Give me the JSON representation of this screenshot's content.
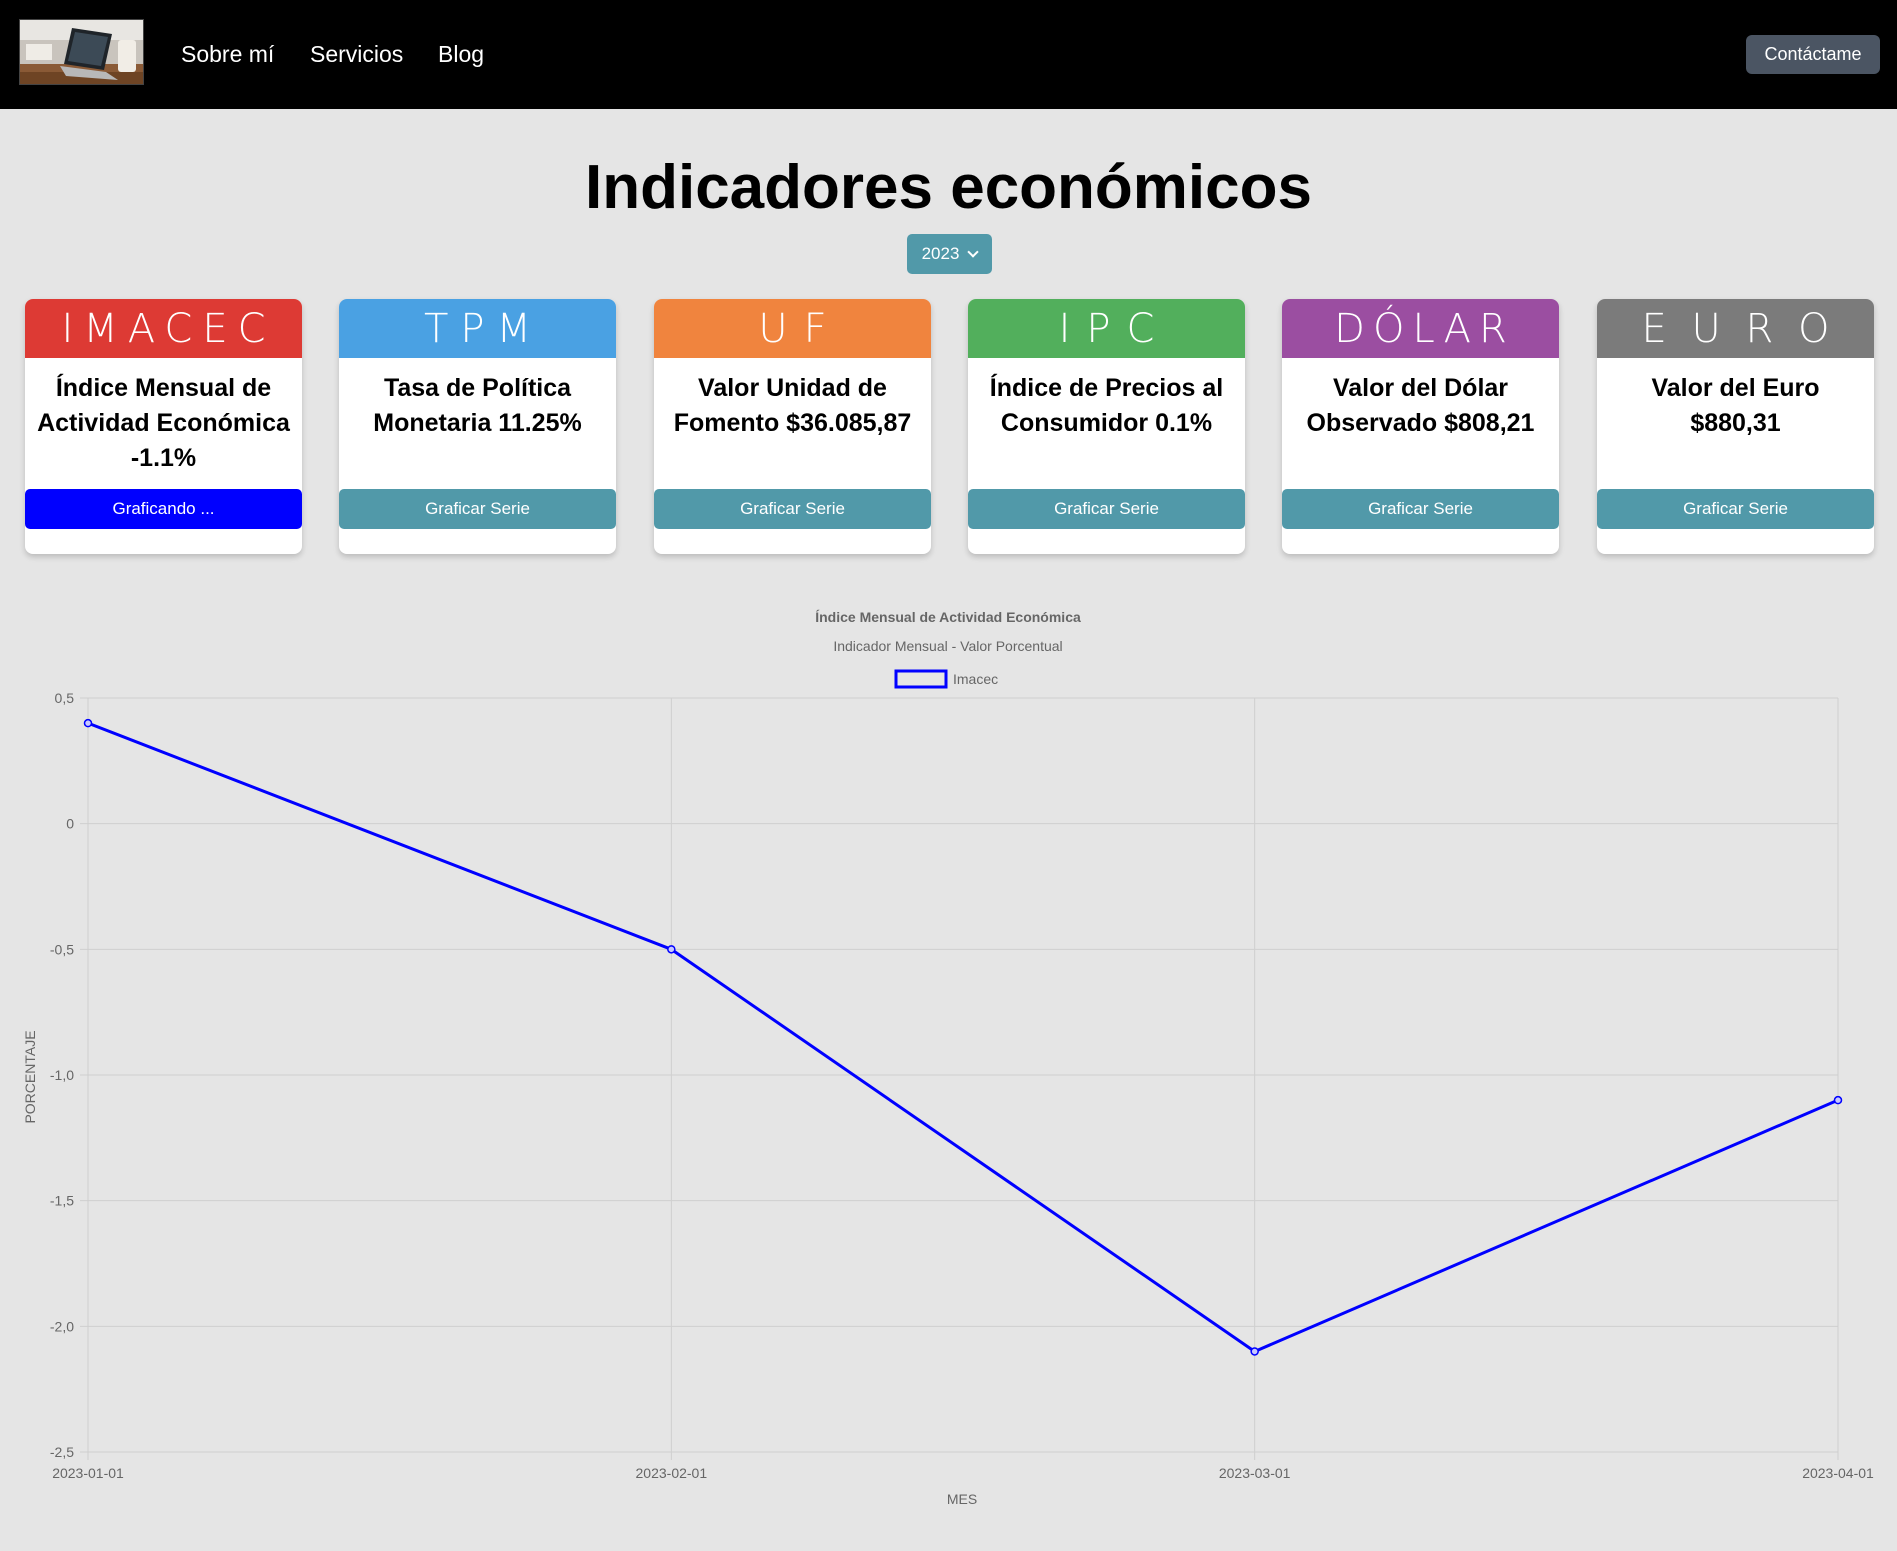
{
  "nav": {
    "links": [
      "Sobre mí",
      "Servicios",
      "Blog"
    ],
    "contact_label": "Contáctame"
  },
  "page": {
    "title": "Indicadores económicos",
    "year": "2023"
  },
  "cards": [
    {
      "head": "IMACEC",
      "desc": "Índice Mensual de Actividad Económica -1.1%",
      "button": "Graficando ...",
      "head_color": "#dd3a34",
      "button_color": "#0000ff"
    },
    {
      "head": "TPM",
      "desc": "Tasa de Política Monetaria 11.25%",
      "button": "Graficar Serie",
      "head_color": "#4aa1e3",
      "button_color": "#5199a9"
    },
    {
      "head": "UF",
      "desc": "Valor Unidad de Fomento $36.085,87",
      "button": "Graficar Serie",
      "head_color": "#f0843e",
      "button_color": "#5199a9"
    },
    {
      "head": "IPC",
      "desc": "Índice de Precios al Consumidor 0.1%",
      "button": "Graficar Serie",
      "head_color": "#52af5c",
      "button_color": "#5199a9"
    },
    {
      "head": "DÓLAR",
      "desc": "Valor del Dólar Observado $808,21",
      "button": "Graficar Serie",
      "head_color": "#9b4ea1",
      "button_color": "#5199a9"
    },
    {
      "head": "E U R O",
      "desc": "Valor del Euro $880,31",
      "button": "Graficar Serie",
      "head_color": "#7b7b7b",
      "button_color": "#5199a9"
    }
  ],
  "chart_data": {
    "type": "line",
    "title": "Índice Mensual de Actividad Económica",
    "subtitle": "Indicador Mensual - Valor Porcentual",
    "xlabel": "MES",
    "ylabel": "PORCENTAJE",
    "x": [
      "2023-01-01",
      "2023-02-01",
      "2023-03-01",
      "2023-04-01"
    ],
    "series": [
      {
        "name": "Imacec",
        "values": [
          0.4,
          -0.5,
          -2.1,
          -1.1
        ],
        "color": "#0000ff"
      }
    ],
    "ylim": [
      -2.5,
      0.5
    ],
    "yticks": [
      "0,5",
      "0",
      "-0,5",
      "-1,0",
      "-1,5",
      "-2,0",
      "-2,5"
    ],
    "grid": true,
    "legend": "top-center"
  }
}
